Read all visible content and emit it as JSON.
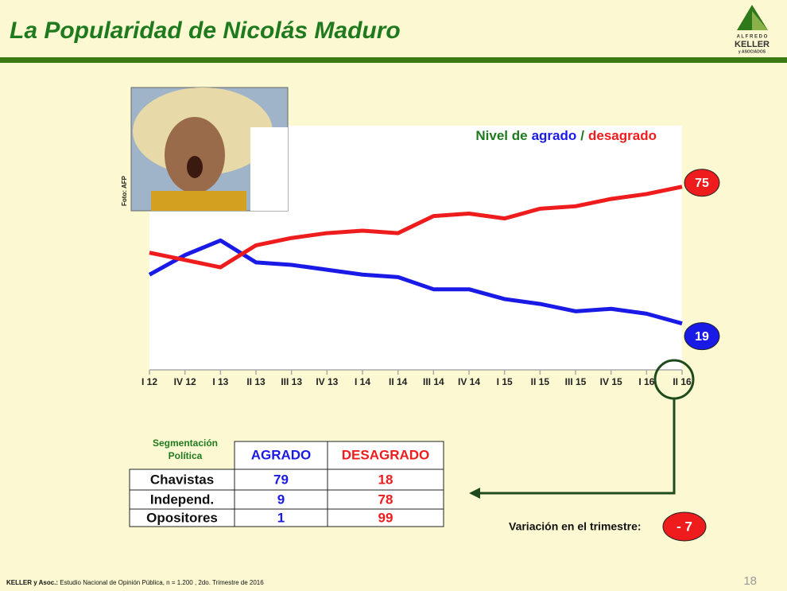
{
  "header": {
    "title": "La Popularidad de Nicolás Maduro"
  },
  "logo": {
    "top": "A L F R E D O",
    "name": "KELLER",
    "bottom": "y ASOCIADOS"
  },
  "photo": {
    "credit": "Foto: AFP"
  },
  "chart_data": {
    "type": "line",
    "title_prefix": "Nivel de",
    "title_separator": "/",
    "categories": [
      "I 12",
      "IV 12",
      "I 13",
      "II 13",
      "III 13",
      "IV 13",
      "I 14",
      "II 14",
      "III 14",
      "IV 14",
      "I 15",
      "II 15",
      "III 15",
      "IV 15",
      "I 16",
      "II 16"
    ],
    "series": [
      {
        "name": "agrado",
        "color": "#1a1ae6",
        "values": [
          39,
          47,
          53,
          44,
          43,
          41,
          39,
          38,
          33,
          33,
          29,
          27,
          24,
          25,
          23,
          19
        ]
      },
      {
        "name": "desagrado",
        "color": "#ee1c1c",
        "values": [
          48,
          45,
          42,
          51,
          54,
          56,
          57,
          56,
          63,
          64,
          62,
          66,
          67,
          70,
          72,
          75
        ]
      }
    ],
    "ylim": [
      0,
      100
    ]
  },
  "table": {
    "header": [
      "Segmentación Política",
      "AGRADO",
      "DESAGRADO"
    ],
    "rows": [
      [
        "Chavistas",
        79,
        18
      ],
      [
        "Independ.",
        9,
        78
      ],
      [
        "Opositores",
        1,
        99
      ]
    ]
  },
  "variation": {
    "label": "Variación en el trimestre:",
    "value": -7,
    "value_label": "- 7"
  },
  "footer": {
    "source_bold": "KELLER y Asoc.:",
    "source": "Estudio Nacional de Opinión Pública, n = 1.200 , 2do. Trimestre de 2016",
    "page": 18
  }
}
